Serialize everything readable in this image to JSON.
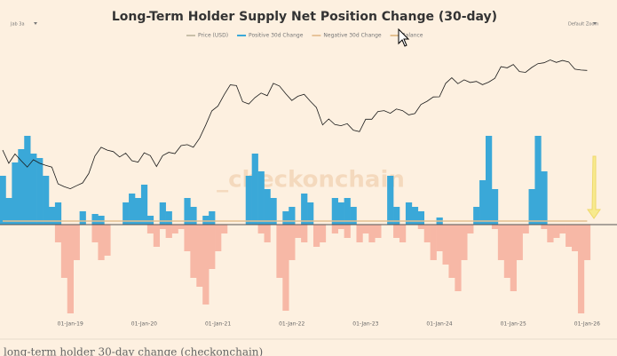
{
  "chart_data": {
    "type": "bar",
    "title": "Long-Term Holder Supply Net Position Change (30-day)",
    "controls": [
      "Jab 3a",
      "Default Zoom"
    ],
    "watermark": "_checkonchain",
    "caption": "long-term holder 30-day change (checkonchain)",
    "categories": [
      null,
      null,
      null,
      null,
      null,
      null,
      null,
      null,
      null,
      null,
      null,
      "01-Jan-19",
      null,
      null,
      null,
      null,
      null,
      null,
      null,
      null,
      null,
      null,
      null,
      "01-Jan-20",
      null,
      null,
      null,
      null,
      null,
      null,
      null,
      null,
      null,
      null,
      null,
      "01-Jan-21",
      null,
      null,
      null,
      null,
      null,
      null,
      null,
      null,
      null,
      null,
      null,
      "01-Jan-22",
      null,
      null,
      null,
      null,
      null,
      null,
      null,
      null,
      null,
      null,
      null,
      "01-Jan-23",
      null,
      null,
      null,
      null,
      null,
      null,
      null,
      null,
      null,
      null,
      null,
      "01-Jan-24",
      null,
      null,
      null,
      null,
      null,
      null,
      null,
      null,
      null,
      null,
      null,
      "01-Jan-25",
      null,
      null,
      null,
      null,
      null,
      null,
      null,
      null,
      null,
      null,
      null,
      "01-Jan-26"
    ],
    "ylim": [
      -105,
      105
    ],
    "y2lim": [
      3000,
      120000
    ],
    "y2log": true,
    "series": [
      {
        "name": "Price (USD)",
        "color": "#1a1a1a",
        "legend_color": "#c9bfa8",
        "axis": "y2",
        "kind": "line",
        "values": [
          10000,
          7000,
          9000,
          7500,
          6300,
          7700,
          7000,
          6600,
          6300,
          4000,
          3700,
          3500,
          3800,
          4100,
          5300,
          8500,
          10800,
          10000,
          9600,
          8300,
          9200,
          7500,
          7200,
          9300,
          8600,
          6400,
          8600,
          9400,
          9100,
          11300,
          11600,
          10800,
          13800,
          19700,
          29000,
          33000,
          45000,
          58800,
          57700,
          37300,
          35000,
          41500,
          47100,
          43800,
          61300,
          57000,
          46300,
          38500,
          43200,
          45500,
          37700,
          31800,
          19800,
          23300,
          20000,
          19400,
          20500,
          17200,
          16500,
          23100,
          23100,
          28500,
          29200,
          27200,
          30500,
          29200,
          26000,
          27000,
          34500,
          37700,
          42300,
          42600,
          61200,
          71300,
          60700,
          67500,
          62700,
          64600,
          59000,
          63300,
          70200,
          96400,
          93400,
          102400,
          84400,
          82500,
          94200,
          104600,
          107100,
          115700,
          108200,
          114000,
          109500,
          90000,
          88000,
          87000
        ]
      },
      {
        "name": "Positive 30d Change",
        "color": "#3aa8d8",
        "kind": "bar",
        "values": [
          55,
          30,
          70,
          85,
          100,
          80,
          75,
          55,
          20,
          25,
          0,
          0,
          0,
          15,
          0,
          12,
          10,
          0,
          0,
          0,
          25,
          35,
          30,
          45,
          10,
          0,
          25,
          15,
          0,
          0,
          30,
          20,
          0,
          10,
          15,
          0,
          0,
          0,
          0,
          0,
          55,
          80,
          60,
          40,
          30,
          0,
          15,
          20,
          0,
          35,
          25,
          0,
          0,
          0,
          30,
          25,
          30,
          20,
          0,
          0,
          0,
          0,
          0,
          55,
          20,
          0,
          25,
          20,
          15,
          0,
          0,
          8,
          0,
          0,
          0,
          0,
          0,
          20,
          50,
          100,
          40,
          0,
          0,
          0,
          0,
          0,
          40,
          100,
          60,
          0,
          0,
          0,
          0,
          0,
          0,
          0
        ]
      },
      {
        "name": "Negative 30d Change",
        "color": "#f7b8a6",
        "legend_color": "#e8c49a",
        "kind": "bar",
        "values": [
          0,
          0,
          0,
          0,
          0,
          0,
          0,
          0,
          0,
          -20,
          -60,
          -100,
          -40,
          0,
          0,
          -20,
          -40,
          -35,
          0,
          0,
          0,
          0,
          0,
          0,
          -10,
          -25,
          -5,
          -15,
          -10,
          -5,
          -30,
          -60,
          -70,
          -90,
          -50,
          -30,
          -10,
          0,
          0,
          0,
          0,
          0,
          -10,
          -20,
          0,
          -60,
          -97,
          -40,
          -15,
          -20,
          0,
          -25,
          -20,
          0,
          -10,
          -5,
          -15,
          0,
          -20,
          -10,
          -20,
          -15,
          0,
          0,
          -15,
          -20,
          0,
          0,
          -5,
          -20,
          -40,
          -30,
          -45,
          -60,
          -75,
          -40,
          -10,
          0,
          0,
          0,
          -5,
          -40,
          -60,
          -75,
          -40,
          -10,
          0,
          0,
          -5,
          -20,
          -15,
          -10,
          -25,
          -30,
          -100,
          -40
        ]
      },
      {
        "name": "Balance",
        "color": "#e3c08f",
        "kind": "line",
        "values": [
          4,
          4,
          4,
          4,
          4,
          4,
          4,
          4,
          4,
          4,
          4,
          4,
          4,
          4,
          4,
          4,
          4,
          4,
          4,
          4,
          4,
          4,
          4,
          4,
          4,
          4,
          4,
          4,
          4,
          4,
          4,
          4,
          4,
          4,
          4,
          4,
          4,
          4,
          4,
          4,
          4,
          4,
          4,
          4,
          4,
          4,
          4,
          4,
          4,
          4,
          4,
          4,
          4,
          4,
          4,
          4,
          4,
          4,
          4,
          4,
          4,
          4,
          4,
          4,
          4,
          4,
          4,
          4,
          4,
          4,
          4,
          4,
          4,
          4,
          4,
          4,
          4,
          4,
          4,
          4,
          4,
          4,
          4,
          4,
          4,
          4,
          4,
          4,
          4,
          4,
          4,
          4,
          4,
          4,
          4,
          4
        ]
      }
    ]
  }
}
